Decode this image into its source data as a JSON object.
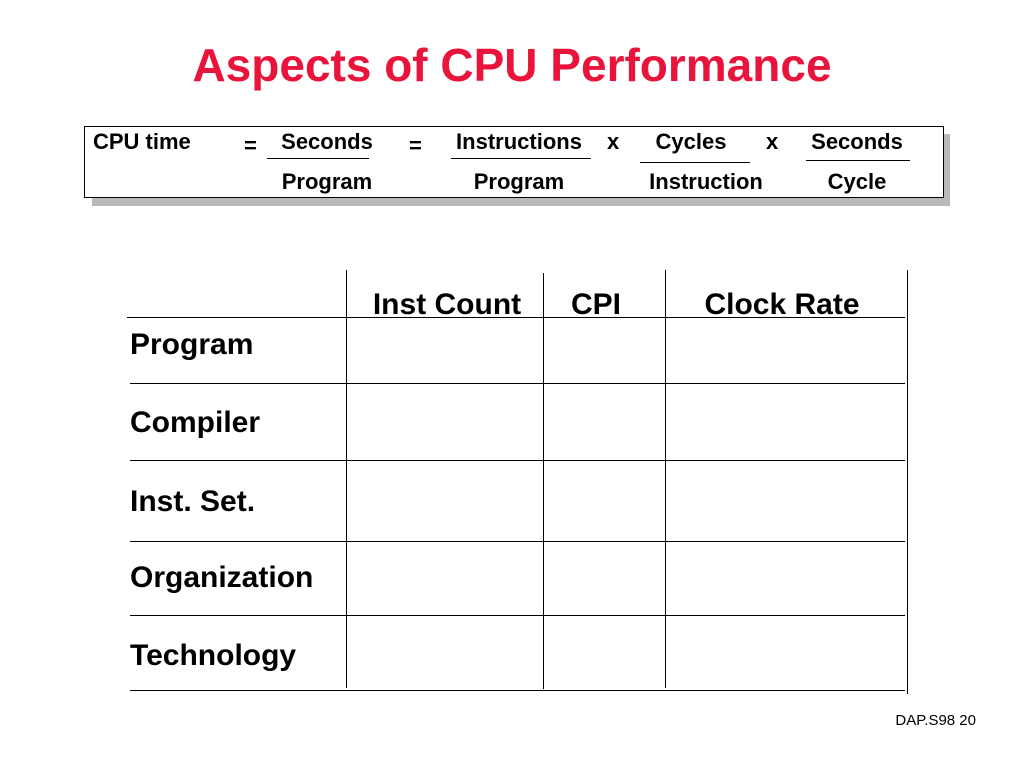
{
  "slide": {
    "title": "Aspects of CPU Performance",
    "footer": "DAP.S98 20"
  },
  "formula": {
    "lhs": "CPU time",
    "eq1": "=",
    "eq2": "=",
    "times1": "x",
    "times2": "x",
    "fractions": [
      {
        "numerator": "Seconds",
        "denominator": "Program"
      },
      {
        "numerator": "Instructions",
        "denominator": "Program"
      },
      {
        "numerator": "Cycles",
        "denominator": "Instruction"
      },
      {
        "numerator": "Seconds",
        "denominator": "Cycle"
      }
    ]
  },
  "table": {
    "columns": [
      "Inst Count",
      "CPI",
      "Clock Rate"
    ],
    "rows": [
      "Program",
      "Compiler",
      "Inst. Set.",
      "Organization",
      "Technology"
    ]
  }
}
